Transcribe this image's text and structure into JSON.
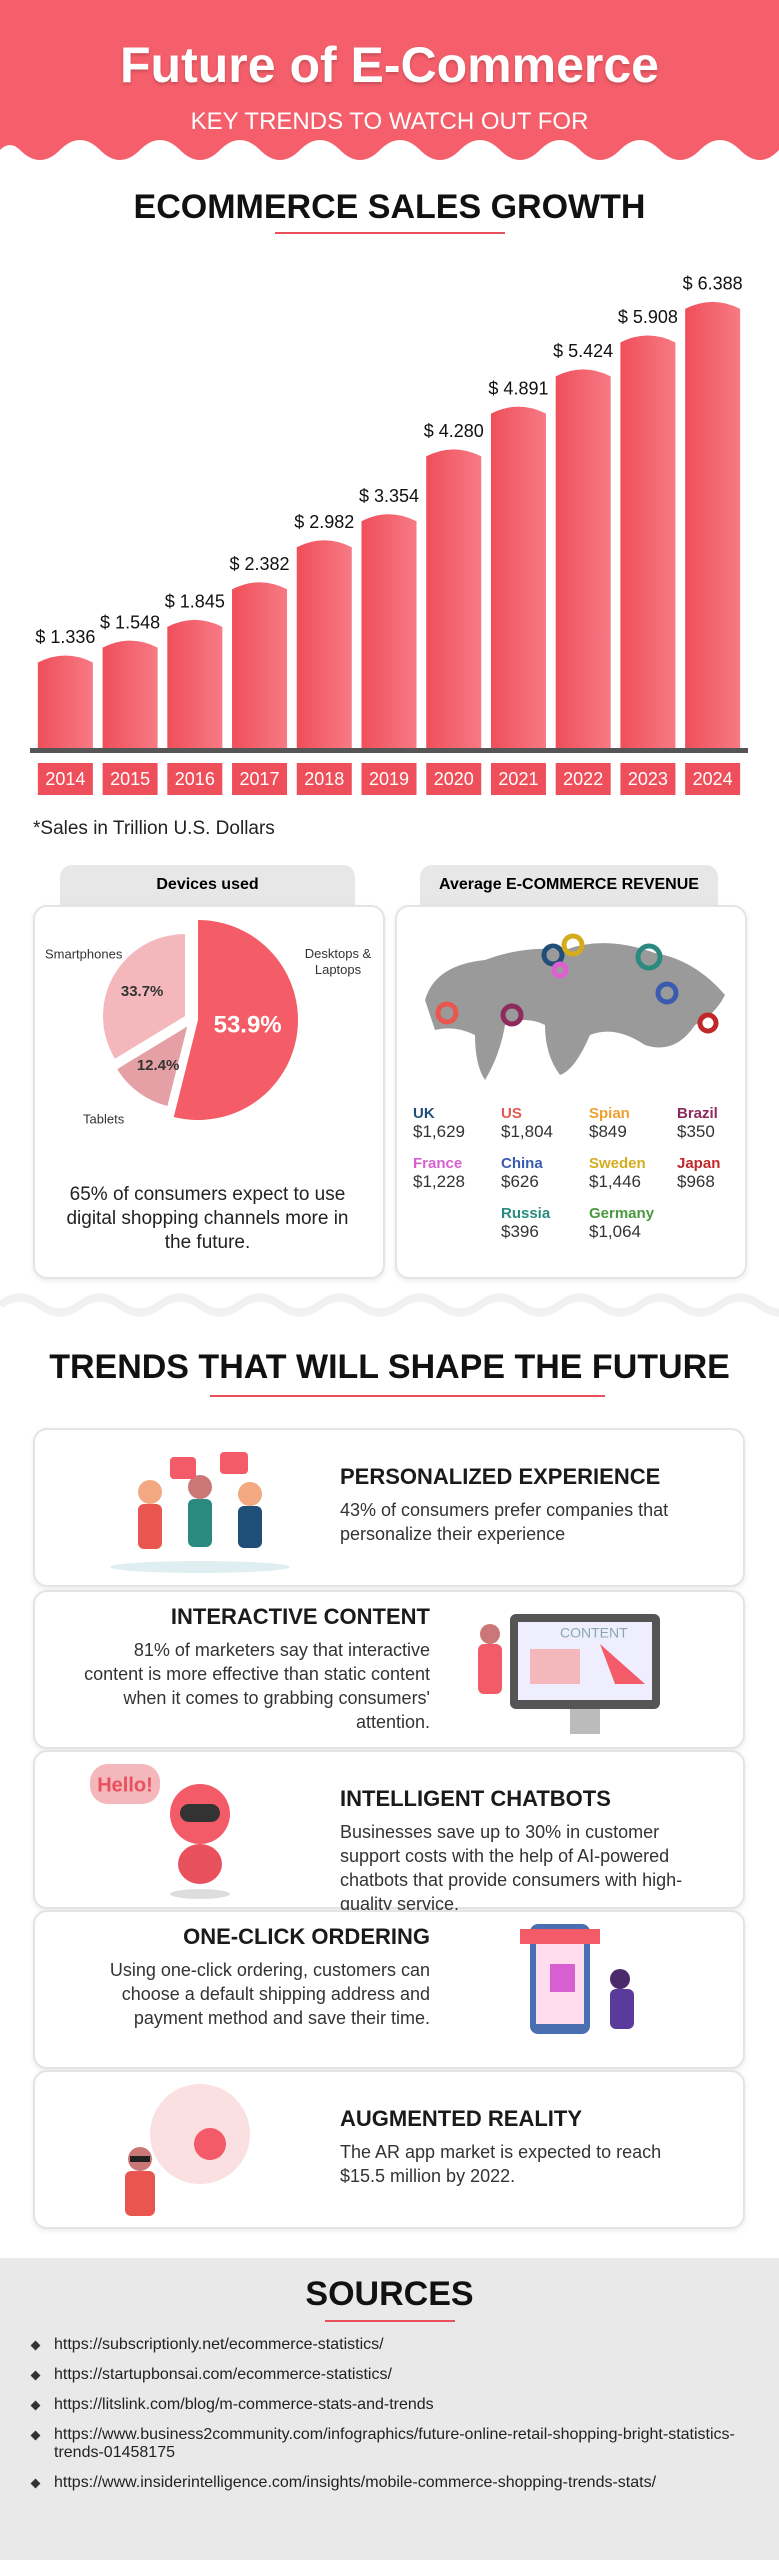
{
  "header": {
    "title": "Future of E-Commerce",
    "subtitle": "KEY TRENDS TO WATCH OUT FOR"
  },
  "chart_data": [
    {
      "type": "bar",
      "title": "ECOMMERCE SALES GROWTH",
      "categories": [
        "2014",
        "2015",
        "2016",
        "2017",
        "2018",
        "2019",
        "2020",
        "2021",
        "2022",
        "2023",
        "2024"
      ],
      "values": [
        1.336,
        1.548,
        1.845,
        2.382,
        2.982,
        3.354,
        4.28,
        4.891,
        5.424,
        5.908,
        6.388
      ],
      "value_labels": [
        "$ 1.336",
        "$ 1.548",
        "$ 1.845",
        "$ 2.382",
        "$ 2.982",
        "$ 3.354",
        "$ 4.280",
        "$ 4.891",
        "$ 5.424",
        "$ 5.908",
        "$ 6.388"
      ],
      "color": "#ef4f5a",
      "ylim": [
        0,
        7
      ],
      "note": "*Sales in Trillion U.S. Dollars"
    },
    {
      "type": "pie",
      "title": "Devices used",
      "categories": [
        "Desktops & Laptops",
        "Tablets",
        "Smartphones"
      ],
      "values": [
        53.9,
        12.4,
        33.7
      ],
      "value_labels": [
        "53.9%",
        "12.4%",
        "33.7%"
      ],
      "colors": [
        "#f45d67",
        "#e4a0a5",
        "#f3b7bc"
      ],
      "note": "65% of consumers expect to use digital shopping channels more in the future."
    }
  ],
  "revenue": {
    "title": "Average E-COMMERCE REVENUE",
    "items": [
      {
        "country": "UK",
        "value": "$1,629",
        "color": "#1f4e79"
      },
      {
        "country": "US",
        "value": "$1,804",
        "color": "#e8564f"
      },
      {
        "country": "Spian",
        "value": "$849",
        "color": "#f0a030"
      },
      {
        "country": "Brazil",
        "value": "$350",
        "color": "#8e2a5c"
      },
      {
        "country": "France",
        "value": "$1,228",
        "color": "#d85fd0"
      },
      {
        "country": "China",
        "value": "$626",
        "color": "#3b5bb0"
      },
      {
        "country": "Sweden",
        "value": "$1,446",
        "color": "#d4ac1e"
      },
      {
        "country": "Japan",
        "value": "$968",
        "color": "#c0282a"
      },
      {
        "country": "Russia",
        "value": "$396",
        "color": "#2a8a80"
      },
      {
        "country": "Germany",
        "value": "$1,064",
        "color": "#4a9a40"
      }
    ]
  },
  "trends": {
    "title": "TRENDS THAT WILL SHAPE THE FUTURE",
    "items": [
      {
        "title": "PERSONALIZED EXPERIENCE",
        "text": "43% of consumers prefer companies that personalize their experience"
      },
      {
        "title": "INTERACTIVE CONTENT",
        "text": "81% of marketers say that interactive content is more effective than static content when it comes to grabbing consumers' attention."
      },
      {
        "title": "INTELLIGENT CHATBOTS",
        "text": "Businesses save up to 30% in customer support costs with the help of AI-powered chatbots that provide consumers with high-quality service."
      },
      {
        "title": "ONE-CLICK ORDERING",
        "text": "Using one-click ordering, customers can choose a default shipping address and payment method and save their time."
      },
      {
        "title": "AUGMENTED REALITY",
        "text": "The AR app market is expected to reach $15.5 million by 2022."
      }
    ]
  },
  "sources": {
    "title": "SOURCES",
    "items": [
      "https://subscriptionly.net/ecommerce-statistics/",
      "https://startupbonsai.com/ecommerce-statistics/",
      "https://litslink.com/blog/m-commerce-stats-and-trends",
      "https://www.business2community.com/infographics/future-online-retail-shopping-bright-statistics-trends-01458175",
      "https://www.insiderintelligence.com/insights/mobile-commerce-shopping-trends-stats/"
    ]
  }
}
